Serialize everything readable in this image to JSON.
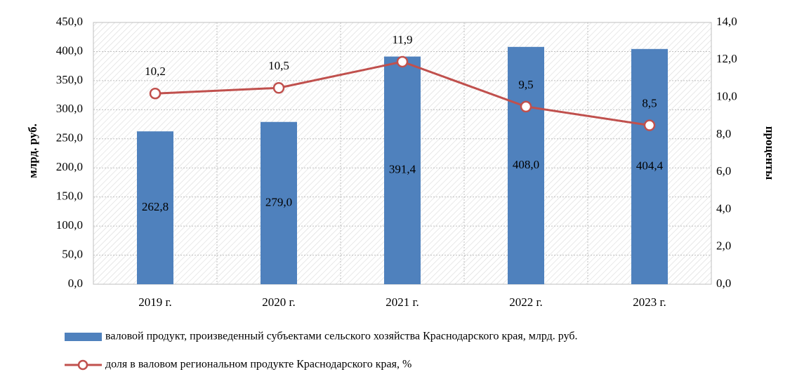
{
  "chart_data": {
    "type": "bar",
    "categories": [
      "2019 г.",
      "2020 г.",
      "2021 г.",
      "2022 г.",
      "2023 г."
    ],
    "y_label": "млрд. руб.",
    "y2_label": "проценты",
    "ylim": [
      0,
      450
    ],
    "yticks": [
      {
        "value": 0,
        "label": "0,0"
      },
      {
        "value": 50,
        "label": "50,0"
      },
      {
        "value": 100,
        "label": "100,0"
      },
      {
        "value": 150,
        "label": "150,0"
      },
      {
        "value": 200,
        "label": "200,0"
      },
      {
        "value": 250,
        "label": "250,0"
      },
      {
        "value": 300,
        "label": "300,0"
      },
      {
        "value": 350,
        "label": "350,0"
      },
      {
        "value": 400,
        "label": "400,0"
      },
      {
        "value": 450,
        "label": "450,0"
      }
    ],
    "y2lim": [
      0,
      14
    ],
    "y2ticks": [
      {
        "value": 0,
        "label": "0,0"
      },
      {
        "value": 2,
        "label": "2,0"
      },
      {
        "value": 4,
        "label": "4,0"
      },
      {
        "value": 6,
        "label": "6,0"
      },
      {
        "value": 8,
        "label": "8,0"
      },
      {
        "value": 10,
        "label": "10,0"
      },
      {
        "value": 12,
        "label": "12,0"
      },
      {
        "value": 14,
        "label": "14,0"
      }
    ],
    "grid": true,
    "series": [
      {
        "name": "валовой продукт, произведенный субъектами сельского хозяйства Краснодарского края, млрд. руб.",
        "type": "bar",
        "color": "#4f81bd",
        "values": [
          262.8,
          279.0,
          391.4,
          408.0,
          404.4
        ],
        "value_labels": [
          "262,8",
          "279,0",
          "391,4",
          "408,0",
          "404,4"
        ]
      },
      {
        "name": "доля в валовом региональном продукте Краснодарского края, %",
        "type": "line",
        "axis": "y2",
        "color": "#c0504d",
        "values": [
          10.2,
          10.5,
          11.9,
          9.5,
          8.5
        ],
        "value_labels": [
          "10,2",
          "10,5",
          "11,9",
          "9,5",
          "8,5"
        ]
      }
    ]
  }
}
